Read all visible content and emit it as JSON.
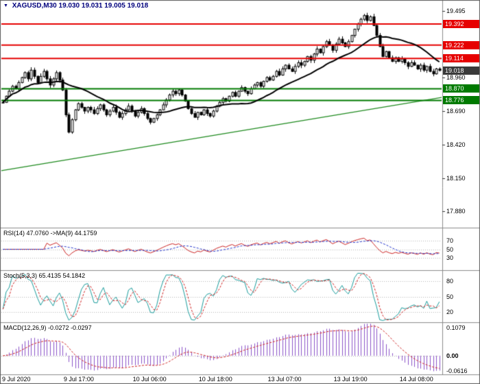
{
  "header": {
    "triangle": "▼",
    "symbol": "XAGUSD,M30",
    "ohlc": "19.030 19.031 19.005 19.018"
  },
  "colors": {
    "background": "#ffffff",
    "border": "#5a5a5a",
    "separator": "#8a8a8a",
    "candle_up_fill": "#ffffff",
    "candle_down_fill": "#000000",
    "candle_outline": "#000000",
    "ma": "#000000",
    "resistance": "#e60000",
    "support": "#007a00",
    "trendline": "#1e8a1e",
    "current_tag_bg": "#3a3a3a",
    "grid_dotted": "#b4b4b4",
    "rsi": "#cc2222",
    "rsi_ma": "#2233cc",
    "stoch_k": "#189c9c",
    "stoch_d": "#d02020",
    "macd_hist": "#8a52c8",
    "macd_signal": "#d02020",
    "axis_text": "#000000",
    "header_text": "#00007d"
  },
  "chart_data": {
    "type": "candlestick",
    "symbol": "XAGUSD",
    "timeframe": "M30",
    "current_bar_ohlc": [
      19.03,
      19.031,
      19.005,
      19.018
    ],
    "price_range": [
      17.75,
      19.58
    ],
    "closes": [
      18.76,
      18.81,
      18.85,
      18.89,
      18.87,
      18.92,
      18.96,
      19.0,
      18.95,
      19.02,
      18.97,
      18.92,
      18.97,
      19.01,
      18.95,
      18.9,
      18.95,
      19.0,
      18.94,
      18.86,
      18.66,
      18.52,
      18.62,
      18.7,
      18.75,
      18.72,
      18.69,
      18.72,
      18.7,
      18.67,
      18.71,
      18.74,
      18.7,
      18.66,
      18.69,
      18.72,
      18.68,
      18.64,
      18.67,
      18.7,
      18.73,
      18.69,
      18.65,
      18.68,
      18.71,
      18.67,
      18.63,
      18.6,
      18.63,
      18.66,
      18.7,
      18.74,
      18.78,
      18.82,
      18.85,
      18.83,
      18.86,
      18.82,
      18.77,
      18.71,
      18.67,
      18.64,
      18.68,
      18.66,
      18.7,
      18.67,
      18.65,
      18.69,
      18.73,
      18.76,
      18.79,
      18.77,
      18.81,
      18.84,
      18.81,
      18.85,
      18.88,
      18.85,
      18.83,
      18.87,
      18.9,
      18.92,
      18.89,
      18.93,
      18.96,
      18.94,
      18.97,
      19.01,
      18.98,
      19.03,
      19.06,
      19.03,
      19.01,
      19.05,
      19.08,
      19.06,
      19.09,
      19.13,
      19.1,
      19.15,
      19.19,
      19.16,
      19.21,
      19.25,
      19.22,
      19.18,
      19.23,
      19.27,
      19.24,
      19.21,
      19.25,
      19.3,
      19.35,
      19.39,
      19.43,
      19.46,
      19.42,
      19.45,
      19.38,
      19.3,
      19.21,
      19.13,
      19.17,
      19.12,
      19.09,
      19.12,
      19.09,
      19.11,
      19.08,
      19.05,
      19.08,
      19.06,
      19.03,
      19.06,
      19.02,
      19.05,
      19.01,
      18.99,
      19.03,
      19.018
    ],
    "levels": {
      "resistance": [
        {
          "value": 19.392,
          "label": "19.392"
        },
        {
          "value": 19.222,
          "label": "19.222"
        },
        {
          "value": 19.114,
          "label": "19.114"
        }
      ],
      "support": [
        {
          "value": 18.87,
          "label": "18.870"
        },
        {
          "value": 18.776,
          "label": "18.776"
        }
      ],
      "current": {
        "value": 19.018,
        "label": "19.018"
      }
    },
    "trendline": {
      "start_price": 18.21,
      "end_price": 18.8
    },
    "price_axis_labels": [
      {
        "value": 19.495,
        "label": "19.495"
      },
      {
        "value": 18.96,
        "label": "18.960"
      },
      {
        "value": 18.69,
        "label": "18.690"
      },
      {
        "value": 18.42,
        "label": "18.420"
      },
      {
        "value": 18.15,
        "label": "18.150"
      },
      {
        "value": 17.88,
        "label": "17.880"
      }
    ],
    "time_labels": [
      {
        "text": "9 Jul 2020",
        "i": 0
      },
      {
        "text": "9 Jul 17:00",
        "i": 20
      },
      {
        "text": "10 Jul 06:00",
        "i": 42
      },
      {
        "text": "10 Jul 18:00",
        "i": 63
      },
      {
        "text": "13 Jul 07:00",
        "i": 85
      },
      {
        "text": "13 Jul 19:00",
        "i": 106
      },
      {
        "text": "14 Jul 08:00",
        "i": 127
      }
    ]
  },
  "indicators": {
    "rsi": {
      "label": "RSI(14) 47.0760   ->MA(9) 44.1759",
      "period": 14,
      "ma_period": 9,
      "current": 47.076,
      "ma_current": 44.1759,
      "range": [
        0,
        100
      ],
      "ticks": [
        {
          "value": 70,
          "label": "70"
        },
        {
          "value": 50,
          "label": "50"
        },
        {
          "value": 30,
          "label": "30"
        }
      ]
    },
    "stoch": {
      "label": "Stoch(5,3,3) 65.4135 54.1842",
      "k_current": 65.4135,
      "d_current": 54.1842,
      "range": [
        0,
        100
      ],
      "ticks": [
        {
          "value": 80,
          "label": "80"
        },
        {
          "value": 50,
          "label": "50"
        },
        {
          "value": 20,
          "label": "20"
        }
      ]
    },
    "macd": {
      "label": "MACD(12,26,9) -0.0272 -0.0297",
      "main_current": -0.0272,
      "signal_current": -0.0297,
      "range": [
        -0.0616,
        0.1079
      ],
      "ticks": [
        {
          "value": 0.1079,
          "label": "0.1079",
          "bold": false
        },
        {
          "value": 0,
          "label": "0.00",
          "bold": true
        },
        {
          "value": -0.0616,
          "label": "-0.0616",
          "bold": false
        }
      ]
    }
  }
}
